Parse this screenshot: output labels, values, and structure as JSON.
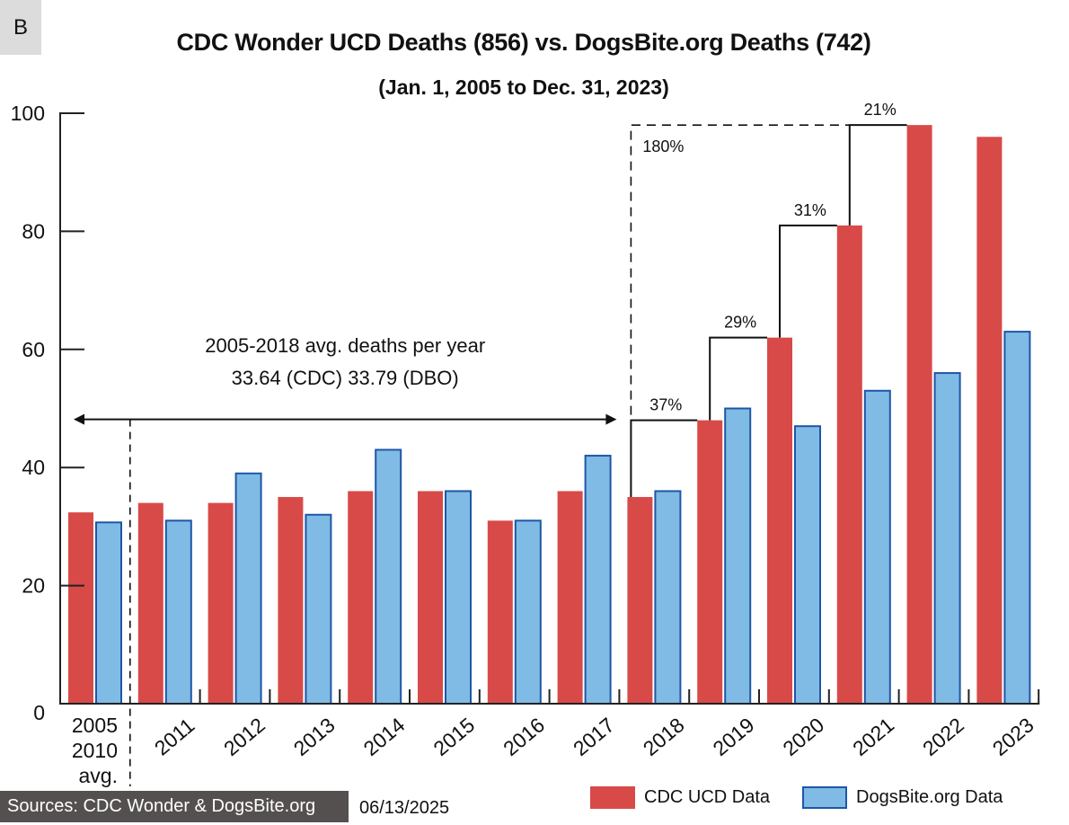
{
  "panel_label": "B",
  "title": "CDC Wonder UCD Deaths (856) vs. DogsBite.org Deaths (742)",
  "subtitle": "(Jan. 1, 2005 to Dec. 31, 2023)",
  "source": "Sources: CDC Wonder & DogsBite.org",
  "date": "06/13/2025",
  "colors": {
    "cdc": "#d84a48",
    "dbo": "#80bbe6",
    "dbo_border": "#1f56a6",
    "axis": "#222222"
  },
  "chart_data": {
    "type": "bar",
    "title": "CDC Wonder UCD Deaths (856) vs. DogsBite.org Deaths (742)",
    "subtitle": "(Jan. 1, 2005 to Dec. 31, 2023)",
    "xlabel": "",
    "ylabel": "",
    "ylim": [
      0,
      100
    ],
    "yticks": [
      0,
      20,
      40,
      60,
      80,
      100
    ],
    "grid": false,
    "legend_position": "bottom-right",
    "categories": [
      "2005\n2010\navg.",
      "2011",
      "2012",
      "2013",
      "2014",
      "2015",
      "2016",
      "2017",
      "2018",
      "2019",
      "2020",
      "2021",
      "2022",
      "2023"
    ],
    "series": [
      {
        "name": "CDC UCD Data",
        "values": [
          32.4,
          34,
          34,
          35,
          36,
          36,
          31,
          36,
          35,
          48,
          62,
          81,
          98,
          96
        ]
      },
      {
        "name": "DogsBite.org Data",
        "values": [
          30.7,
          31,
          39,
          32,
          43,
          36,
          31,
          42,
          36,
          50,
          47,
          53,
          56,
          63
        ]
      }
    ],
    "annotations": {
      "average_range": {
        "line1": "2005-2018 avg. deaths per year",
        "line2": "33.64 (CDC) 33.79 (DBO)",
        "from_category": 0,
        "to_category": 8,
        "arrow_level": 48
      },
      "total_increase": {
        "label": "180%",
        "from_category": 8,
        "to_category": 12
      },
      "steps": [
        {
          "label": "37%",
          "from_category": 8,
          "to_category": 9
        },
        {
          "label": "29%",
          "from_category": 9,
          "to_category": 10
        },
        {
          "label": "31%",
          "from_category": 10,
          "to_category": 11
        },
        {
          "label": "21%",
          "from_category": 11,
          "to_category": 12
        }
      ]
    }
  }
}
